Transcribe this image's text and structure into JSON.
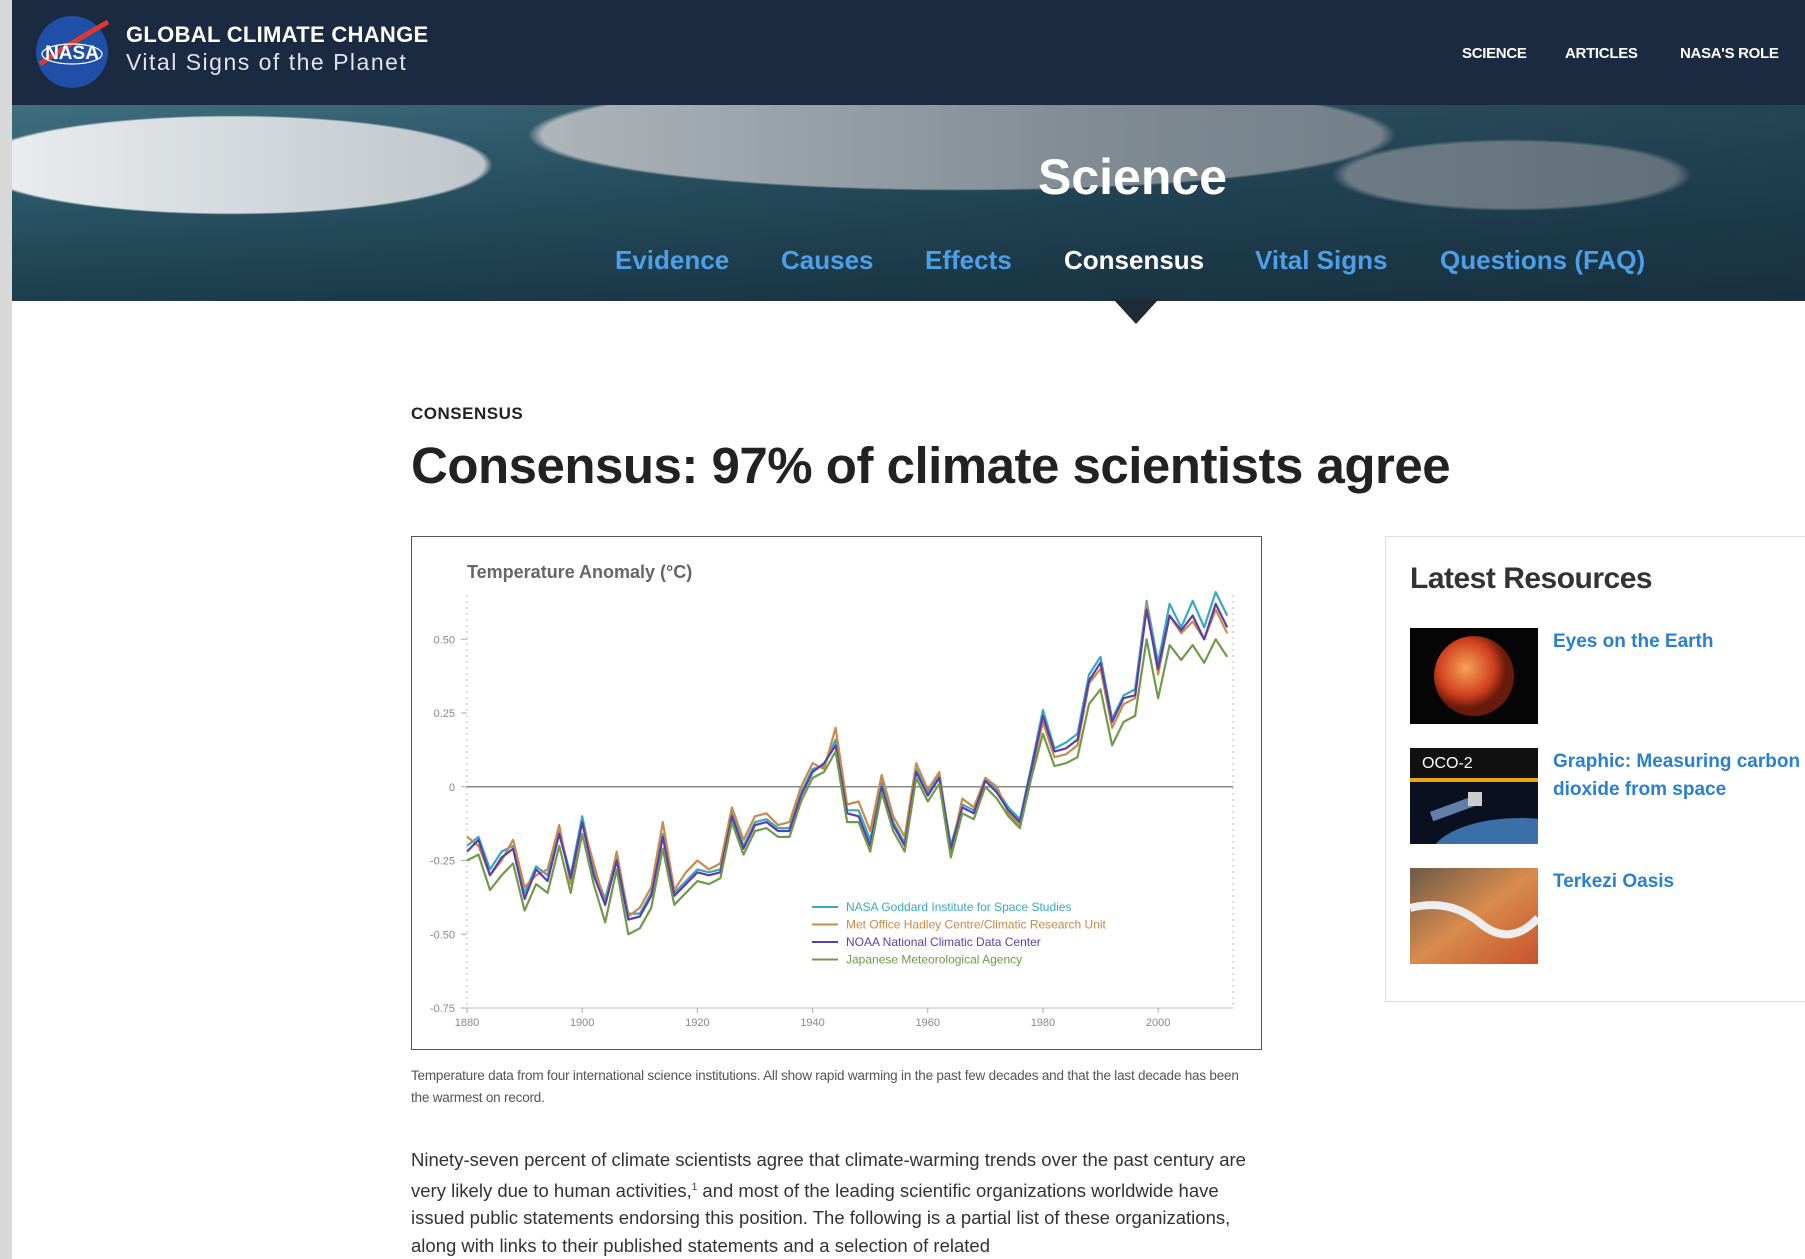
{
  "header": {
    "logo": "NASA",
    "title": "GLOBAL CLIMATE CHANGE",
    "subtitle": "Vital Signs of the Planet",
    "nav": [
      "SCIENCE",
      "ARTICLES",
      "NASA'S ROLE"
    ]
  },
  "hero": {
    "title": "Science",
    "tabs": [
      "Evidence",
      "Causes",
      "Effects",
      "Consensus",
      "Vital Signs",
      "Questions (FAQ)"
    ]
  },
  "article": {
    "kicker": "CONSENSUS",
    "title": "Consensus: 97% of climate scientists agree",
    "caption": "Temperature data from four international science institutions. All show rapid warming in the past few decades and that the last decade has been the warmest on record.",
    "body": {
      "before": "Ninety-seven percent of climate scientists agree that climate-warming trends over the past century are very likely due to human activities,",
      "note": "1",
      "after": " and most of the leading scientific organizations worldwide have issued public statements endorsing this position. The following is a partial list of these organizations, along with links to their published statements and a selection of related"
    }
  },
  "sidebar": {
    "title": "Latest Resources",
    "items": [
      {
        "title": "Eyes on the Earth"
      },
      {
        "title": "Graphic: Measuring carbon dioxide from space",
        "badge": "OCO-2"
      },
      {
        "title": "Terkezi Oasis"
      }
    ]
  },
  "chart_data": {
    "type": "line",
    "title": "Temperature Anomaly (°C)",
    "x": [
      1880,
      1882,
      1884,
      1886,
      1888,
      1890,
      1892,
      1894,
      1896,
      1898,
      1900,
      1902,
      1904,
      1906,
      1908,
      1910,
      1912,
      1914,
      1916,
      1918,
      1920,
      1922,
      1924,
      1926,
      1928,
      1930,
      1932,
      1934,
      1936,
      1938,
      1940,
      1942,
      1944,
      1946,
      1948,
      1950,
      1952,
      1954,
      1956,
      1958,
      1960,
      1962,
      1964,
      1966,
      1968,
      1970,
      1972,
      1974,
      1976,
      1978,
      1980,
      1982,
      1984,
      1986,
      1988,
      1990,
      1992,
      1994,
      1996,
      1998,
      2000,
      2002,
      2004,
      2006,
      2008,
      2010,
      2012
    ],
    "xlim": [
      1880,
      2013
    ],
    "xticks": [
      1880,
      1900,
      1920,
      1940,
      1960,
      1980,
      2000
    ],
    "ylim": [
      -0.75,
      0.65
    ],
    "yticks": [
      -0.75,
      {
        "value": -0.5,
        "label": "-0.50"
      },
      -0.25,
      0,
      0.25,
      {
        "value": 0.5,
        "label": "0.50"
      }
    ],
    "series": [
      {
        "name": "NASA Goddard Institute for Space Studies",
        "color": "#3aa8c1",
        "values": [
          -0.2,
          -0.17,
          -0.28,
          -0.22,
          -0.2,
          -0.36,
          -0.27,
          -0.3,
          -0.15,
          -0.3,
          -0.1,
          -0.28,
          -0.38,
          -0.23,
          -0.43,
          -0.43,
          -0.36,
          -0.16,
          -0.36,
          -0.32,
          -0.28,
          -0.29,
          -0.28,
          -0.09,
          -0.2,
          -0.12,
          -0.11,
          -0.14,
          -0.14,
          -0.02,
          0.06,
          0.07,
          0.16,
          -0.08,
          -0.08,
          -0.18,
          0.02,
          -0.12,
          -0.19,
          0.06,
          -0.02,
          0.04,
          -0.2,
          -0.06,
          -0.08,
          0.03,
          -0.01,
          -0.07,
          -0.11,
          0.07,
          0.26,
          0.13,
          0.15,
          0.18,
          0.38,
          0.44,
          0.23,
          0.31,
          0.33,
          0.63,
          0.42,
          0.62,
          0.54,
          0.63,
          0.54,
          0.66,
          0.58
        ]
      },
      {
        "name": "Met Office Hadley Centre/Climatic Research Unit",
        "color": "#c98a4b",
        "values": [
          -0.17,
          -0.2,
          -0.3,
          -0.25,
          -0.18,
          -0.34,
          -0.3,
          -0.28,
          -0.13,
          -0.33,
          -0.12,
          -0.26,
          -0.4,
          -0.22,
          -0.44,
          -0.41,
          -0.34,
          -0.12,
          -0.35,
          -0.29,
          -0.25,
          -0.28,
          -0.26,
          -0.07,
          -0.18,
          -0.1,
          -0.09,
          -0.13,
          -0.12,
          0.0,
          0.08,
          0.06,
          0.2,
          -0.06,
          -0.05,
          -0.15,
          0.04,
          -0.1,
          -0.17,
          0.08,
          -0.01,
          0.05,
          -0.22,
          -0.04,
          -0.07,
          0.03,
          0.0,
          -0.09,
          -0.13,
          0.05,
          0.22,
          0.1,
          0.11,
          0.14,
          0.35,
          0.4,
          0.2,
          0.28,
          0.3,
          0.62,
          0.38,
          0.58,
          0.52,
          0.56,
          0.5,
          0.6,
          0.52
        ]
      },
      {
        "name": "NOAA National Climatic Data Center",
        "color": "#5b3fa8",
        "values": [
          -0.22,
          -0.18,
          -0.3,
          -0.24,
          -0.21,
          -0.38,
          -0.28,
          -0.32,
          -0.16,
          -0.31,
          -0.12,
          -0.3,
          -0.4,
          -0.25,
          -0.45,
          -0.44,
          -0.37,
          -0.17,
          -0.37,
          -0.33,
          -0.29,
          -0.3,
          -0.29,
          -0.1,
          -0.21,
          -0.13,
          -0.12,
          -0.15,
          -0.15,
          -0.03,
          0.05,
          0.08,
          0.14,
          -0.09,
          -0.1,
          -0.2,
          0.0,
          -0.13,
          -0.2,
          0.05,
          -0.03,
          0.03,
          -0.21,
          -0.07,
          -0.09,
          0.02,
          -0.02,
          -0.08,
          -0.12,
          0.06,
          0.24,
          0.12,
          0.13,
          0.16,
          0.36,
          0.42,
          0.22,
          0.3,
          0.31,
          0.6,
          0.4,
          0.58,
          0.53,
          0.58,
          0.5,
          0.62,
          0.54
        ]
      },
      {
        "name": "Japanese Meteorological Agency",
        "color": "#6f9a4a",
        "values": [
          -0.25,
          -0.23,
          -0.35,
          -0.3,
          -0.26,
          -0.42,
          -0.33,
          -0.36,
          -0.2,
          -0.36,
          -0.16,
          -0.33,
          -0.46,
          -0.28,
          -0.5,
          -0.48,
          -0.41,
          -0.21,
          -0.4,
          -0.36,
          -0.32,
          -0.33,
          -0.31,
          -0.12,
          -0.23,
          -0.15,
          -0.14,
          -0.17,
          -0.17,
          -0.05,
          0.03,
          0.05,
          0.12,
          -0.12,
          -0.12,
          -0.22,
          -0.02,
          -0.15,
          -0.22,
          0.03,
          -0.05,
          0.01,
          -0.24,
          -0.09,
          -0.11,
          0.0,
          -0.04,
          -0.1,
          -0.14,
          0.03,
          0.18,
          0.07,
          0.08,
          0.1,
          0.28,
          0.33,
          0.14,
          0.22,
          0.24,
          0.5,
          0.3,
          0.48,
          0.43,
          0.48,
          0.42,
          0.5,
          0.44
        ]
      }
    ]
  }
}
